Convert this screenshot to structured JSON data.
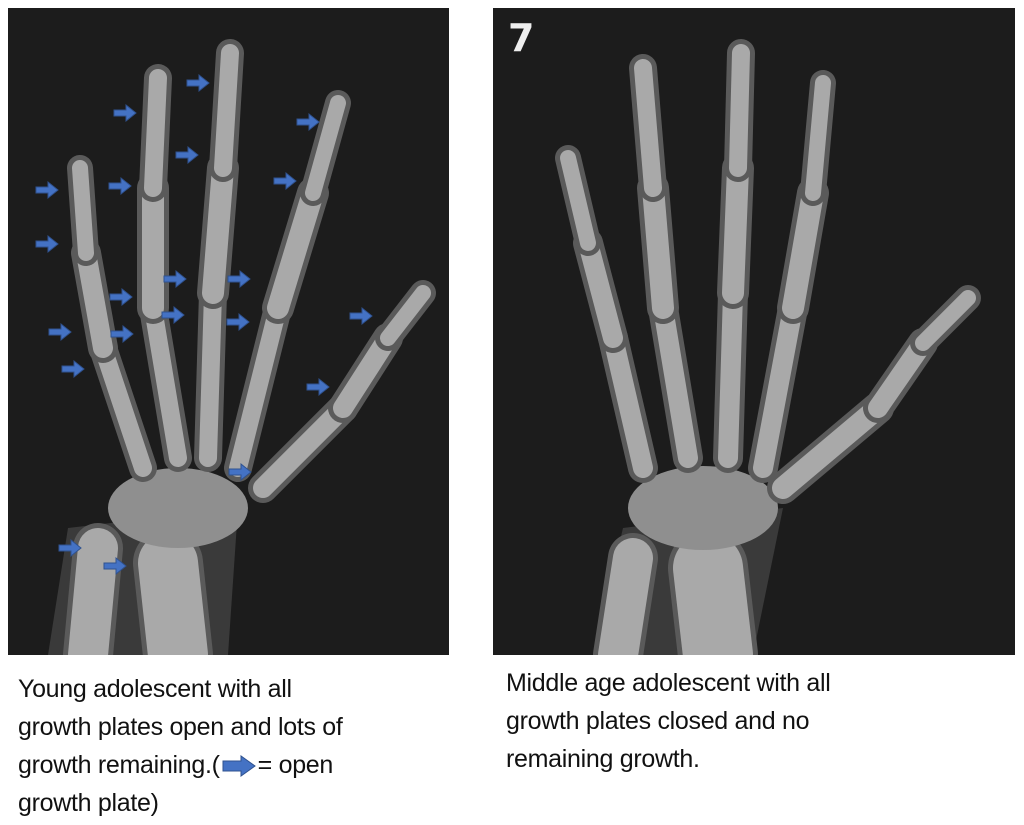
{
  "left_panel": {
    "caption_lines": [
      "Young adolescent with all",
      "growth plates open and lots of",
      "growth remaining.(",
      "= open",
      "growth plate)"
    ],
    "arrow_icon": "right-arrow-icon",
    "arrow_color": "#4472C4"
  },
  "right_panel": {
    "marker": "7",
    "caption_lines": [
      "Middle age adolescent with all",
      "growth plates closed and no",
      "remaining growth."
    ]
  }
}
